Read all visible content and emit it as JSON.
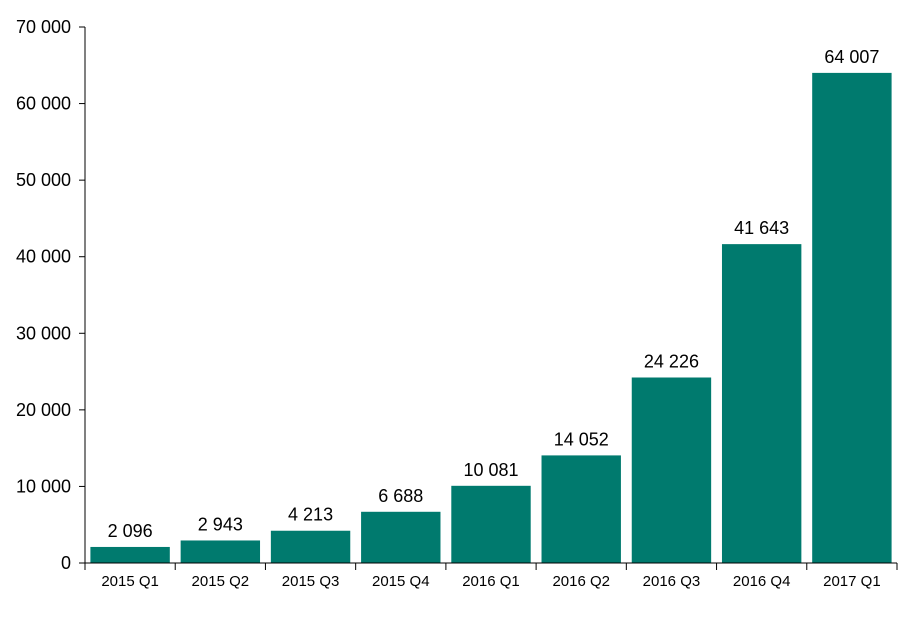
{
  "chart_data": {
    "type": "bar",
    "categories": [
      "2015 Q1",
      "2015 Q2",
      "2015 Q3",
      "2015 Q4",
      "2016 Q1",
      "2016 Q2",
      "2016 Q3",
      "2016 Q4",
      "2017 Q1"
    ],
    "values": [
      2096,
      2943,
      4213,
      6688,
      10081,
      14052,
      24226,
      41643,
      64007
    ],
    "value_labels": [
      "2 096",
      "2 943",
      "4 213",
      "6 688",
      "10 081",
      "14 052",
      "24 226",
      "41 643",
      "64 007"
    ],
    "yticks": [
      0,
      10000,
      20000,
      30000,
      40000,
      50000,
      60000,
      70000
    ],
    "ytick_labels": [
      "0",
      "10 000",
      "20 000",
      "30 000",
      "40 000",
      "50 000",
      "60 000",
      "70 000"
    ],
    "ylim": [
      0,
      70000
    ],
    "grid": false,
    "legend": "none",
    "colors": {
      "bar": "#007a6e",
      "axis": "#000000"
    }
  }
}
